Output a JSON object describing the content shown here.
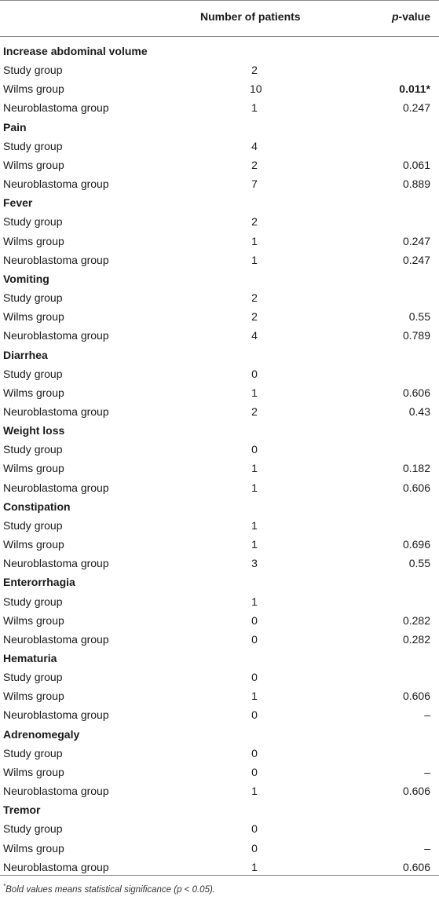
{
  "header": {
    "col_number": "Number of patients",
    "col_p_italic": "p",
    "col_p_rest": "-value"
  },
  "sections": [
    {
      "title": "Increase abdominal volume",
      "rows": [
        {
          "label": "Study group",
          "n": "2",
          "p": ""
        },
        {
          "label": "Wilms group",
          "n": "10",
          "p": "0.011*",
          "bold": true
        },
        {
          "label": "Neuroblastoma group",
          "n": "1",
          "p": "0.247"
        }
      ]
    },
    {
      "title": "Pain",
      "rows": [
        {
          "label": "Study group",
          "n": "4",
          "p": ""
        },
        {
          "label": "Wilms group",
          "n": "2",
          "p": "0.061"
        },
        {
          "label": "Neuroblastoma group",
          "n": "7",
          "p": "0.889"
        }
      ]
    },
    {
      "title": "Fever",
      "rows": [
        {
          "label": "Study group",
          "n": "2",
          "p": ""
        },
        {
          "label": "Wilms group",
          "n": "1",
          "p": "0.247"
        },
        {
          "label": "Neuroblastoma group",
          "n": "1",
          "p": "0.247"
        }
      ]
    },
    {
      "title": "Vomiting",
      "rows": [
        {
          "label": "Study group",
          "n": "2",
          "p": ""
        },
        {
          "label": "Wilms group",
          "n": "2",
          "p": "0.55"
        },
        {
          "label": "Neuroblastoma group",
          "n": "4",
          "p": "0.789"
        }
      ]
    },
    {
      "title": "Diarrhea",
      "rows": [
        {
          "label": "Study group",
          "n": "0",
          "p": ""
        },
        {
          "label": "Wilms group",
          "n": "1",
          "p": "0.606"
        },
        {
          "label": "Neuroblastoma group",
          "n": "2",
          "p": "0.43"
        }
      ]
    },
    {
      "title": "Weight loss",
      "rows": [
        {
          "label": "Study group",
          "n": "0",
          "p": ""
        },
        {
          "label": "Wilms group",
          "n": "1",
          "p": "0.182"
        },
        {
          "label": "Neuroblastoma group",
          "n": "1",
          "p": "0.606"
        }
      ]
    },
    {
      "title": "Constipation",
      "rows": [
        {
          "label": "Study group",
          "n": "1",
          "p": ""
        },
        {
          "label": "Wilms group",
          "n": "1",
          "p": "0.696"
        },
        {
          "label": "Neuroblastoma group",
          "n": "3",
          "p": "0.55"
        }
      ]
    },
    {
      "title": "Enterorrhagia",
      "rows": [
        {
          "label": "Study group",
          "n": "1",
          "p": ""
        },
        {
          "label": "Wilms group",
          "n": "0",
          "p": "0.282"
        },
        {
          "label": "Neuroblastoma group",
          "n": "0",
          "p": "0.282"
        }
      ]
    },
    {
      "title": "Hematuria",
      "rows": [
        {
          "label": "Study group",
          "n": "0",
          "p": ""
        },
        {
          "label": "Wilms group",
          "n": "1",
          "p": "0.606"
        },
        {
          "label": "Neuroblastoma group",
          "n": "0",
          "p": "–"
        }
      ]
    },
    {
      "title": "Adrenomegaly",
      "rows": [
        {
          "label": "Study group",
          "n": "0",
          "p": ""
        },
        {
          "label": "Wilms group",
          "n": "0",
          "p": "–"
        },
        {
          "label": "Neuroblastoma group",
          "n": "1",
          "p": "0.606"
        }
      ]
    },
    {
      "title": "Tremor",
      "rows": [
        {
          "label": "Study group",
          "n": "0",
          "p": ""
        },
        {
          "label": "Wilms group",
          "n": "0",
          "p": "–"
        },
        {
          "label": "Neuroblastoma group",
          "n": "1",
          "p": "0.606"
        }
      ]
    }
  ],
  "footnote": {
    "marker": "*",
    "text": "Bold values means statistical significance (p < 0.05)."
  }
}
